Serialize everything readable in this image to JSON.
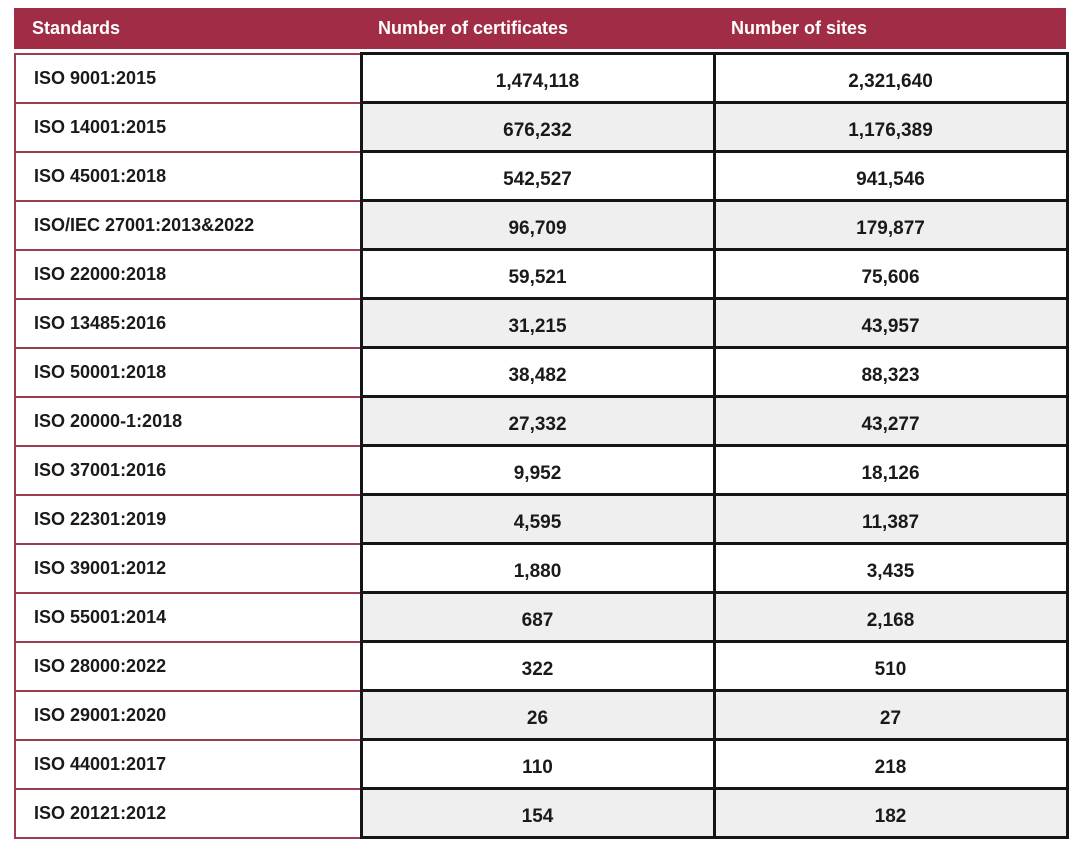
{
  "table": {
    "headers": [
      "Standards",
      "Number of certificates",
      "Number of sites"
    ],
    "rows": [
      {
        "standard": "ISO 9001:2015",
        "certificates": "1,474,118",
        "sites": "2,321,640"
      },
      {
        "standard": "ISO 14001:2015",
        "certificates": "676,232",
        "sites": "1,176,389"
      },
      {
        "standard": "ISO 45001:2018",
        "certificates": "542,527",
        "sites": "941,546"
      },
      {
        "standard": "ISO/IEC 27001:2013&2022",
        "certificates": "96,709",
        "sites": "179,877"
      },
      {
        "standard": "ISO 22000:2018",
        "certificates": "59,521",
        "sites": "75,606"
      },
      {
        "standard": "ISO 13485:2016",
        "certificates": "31,215",
        "sites": "43,957"
      },
      {
        "standard": "ISO 50001:2018",
        "certificates": "38,482",
        "sites": "88,323"
      },
      {
        "standard": "ISO 20000-1:2018",
        "certificates": "27,332",
        "sites": "43,277"
      },
      {
        "standard": "ISO 37001:2016",
        "certificates": "9,952",
        "sites": "18,126"
      },
      {
        "standard": "ISO 22301:2019",
        "certificates": "4,595",
        "sites": "11,387"
      },
      {
        "standard": "ISO 39001:2012",
        "certificates": "1,880",
        "sites": "3,435"
      },
      {
        "standard": "ISO 55001:2014",
        "certificates": "687",
        "sites": "2,168"
      },
      {
        "standard": "ISO 28000:2022",
        "certificates": "322",
        "sites": "510"
      },
      {
        "standard": "ISO 29001:2020",
        "certificates": "26",
        "sites": "27"
      },
      {
        "standard": "ISO 44001:2017",
        "certificates": "110",
        "sites": "218"
      },
      {
        "standard": "ISO 20121:2012",
        "certificates": "154",
        "sites": "182"
      }
    ],
    "colors": {
      "header_bg": "#A02C46",
      "header_text": "#FFFFFF",
      "col1_border": "#9D3B50",
      "num_border": "#151515",
      "alt_row_bg": "#EFEFEF",
      "row_bg": "#FFFFFF",
      "text": "#1A1A1A",
      "page_bg": "#FFFFFF"
    }
  },
  "chart_data": {
    "type": "table",
    "columns": [
      "Standards",
      "Number of certificates",
      "Number of sites"
    ],
    "rows": [
      [
        "ISO 9001:2015",
        1474118,
        2321640
      ],
      [
        "ISO 14001:2015",
        676232,
        1176389
      ],
      [
        "ISO 45001:2018",
        542527,
        941546
      ],
      [
        "ISO/IEC 27001:2013&2022",
        96709,
        179877
      ],
      [
        "ISO 22000:2018",
        59521,
        75606
      ],
      [
        "ISO 13485:2016",
        31215,
        43957
      ],
      [
        "ISO 50001:2018",
        38482,
        88323
      ],
      [
        "ISO 20000-1:2018",
        27332,
        43277
      ],
      [
        "ISO 37001:2016",
        9952,
        18126
      ],
      [
        "ISO 22301:2019",
        4595,
        11387
      ],
      [
        "ISO 39001:2012",
        1880,
        3435
      ],
      [
        "ISO 55001:2014",
        687,
        2168
      ],
      [
        "ISO 28000:2022",
        322,
        510
      ],
      [
        "ISO 29001:2020",
        26,
        27
      ],
      [
        "ISO 44001:2017",
        110,
        218
      ],
      [
        "ISO 20121:2012",
        154,
        182
      ]
    ],
    "layout": {
      "header_style": "maroon band, white bold left-aligned text",
      "body_style": "alternating white / light-gray number cells, bold centered numbers",
      "grid": "on"
    }
  }
}
